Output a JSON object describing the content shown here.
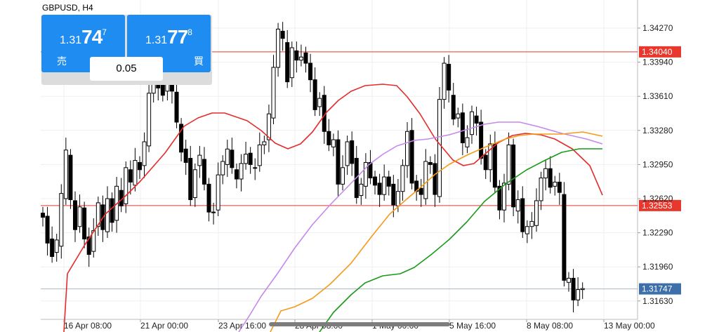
{
  "symbol": "GBPUSD, H4",
  "trade": {
    "sell": {
      "label": "売",
      "price_small": "1.31",
      "price_large": "74",
      "price_sup": "7"
    },
    "buy": {
      "label": "買",
      "price_small": "1.31",
      "price_large": "77",
      "price_sup": "8"
    },
    "lot": "0.05"
  },
  "chart_data": {
    "type": "candlestick",
    "ylim": [
      1.1515,
      1.3452
    ],
    "y_ticks": [
      "1.34270",
      "1.33940",
      "1.33610",
      "1.33280",
      "1.32950",
      "1.32620",
      "1.32290",
      "1.31960",
      "1.31630"
    ],
    "x_labels": [
      "16 Apr 08:00",
      "21 Apr 00:00",
      "23 Apr 16:00",
      "28 Apr 08:00",
      "1 May 00:00",
      "5 May 16:00",
      "8 May 08:00",
      "13 May 00:00"
    ],
    "hlines": [
      {
        "value": "1.34040",
        "color": "#e8382e"
      },
      {
        "value": "1.32553",
        "color": "#e8382e"
      }
    ],
    "current_price": {
      "value": "1.31747",
      "color": "#3d6fa8"
    },
    "candles": [
      [
        1.3248,
        1.3244
      ],
      [
        1.3245,
        1.3219
      ],
      [
        1.3223,
        1.3206
      ],
      [
        1.321,
        1.3222
      ],
      [
        1.3216,
        1.3267
      ],
      [
        1.3262,
        1.3309
      ],
      [
        1.3304,
        1.3261
      ],
      [
        1.326,
        1.3232
      ],
      [
        1.3235,
        1.3254
      ],
      [
        1.3253,
        1.3223
      ],
      [
        1.3225,
        1.3208
      ],
      [
        1.3211,
        1.3231
      ],
      [
        1.3235,
        1.3258
      ],
      [
        1.3256,
        1.3232
      ],
      [
        1.323,
        1.3262
      ],
      [
        1.3262,
        1.3239
      ],
      [
        1.3241,
        1.3274
      ],
      [
        1.327,
        1.3255
      ],
      [
        1.3257,
        1.3292
      ],
      [
        1.329,
        1.3278
      ],
      [
        1.3275,
        1.3299
      ],
      [
        1.3297,
        1.329
      ],
      [
        1.3294,
        1.3317
      ],
      [
        1.3313,
        1.3364
      ],
      [
        1.3364,
        1.3392
      ],
      [
        1.339,
        1.3369
      ],
      [
        1.3372,
        1.3362
      ],
      [
        1.3366,
        1.3385
      ],
      [
        1.3383,
        1.3366
      ],
      [
        1.3365,
        1.3336
      ],
      [
        1.3334,
        1.3307
      ],
      [
        1.331,
        1.3297
      ],
      [
        1.3301,
        1.3261
      ],
      [
        1.3263,
        1.329
      ],
      [
        1.3294,
        1.3304
      ],
      [
        1.33,
        1.3276
      ],
      [
        1.3276,
        1.3249
      ],
      [
        1.3249,
        1.3249
      ],
      [
        1.3251,
        1.3285
      ],
      [
        1.3285,
        1.3298
      ],
      [
        1.3295,
        1.331
      ],
      [
        1.3309,
        1.3292
      ],
      [
        1.329,
        1.3281
      ],
      [
        1.3281,
        1.3296
      ],
      [
        1.3296,
        1.3305
      ],
      [
        1.3306,
        1.3295
      ],
      [
        1.3292,
        1.3292
      ],
      [
        1.3294,
        1.3314
      ],
      [
        1.3314,
        1.3317
      ],
      [
        1.3319,
        1.3344
      ],
      [
        1.334,
        1.3389
      ],
      [
        1.3389,
        1.3426
      ],
      [
        1.3424,
        1.3417
      ],
      [
        1.3413,
        1.3375
      ],
      [
        1.3379,
        1.3408
      ],
      [
        1.3405,
        1.3396
      ],
      [
        1.3396,
        1.3399
      ],
      [
        1.3403,
        1.3393
      ],
      [
        1.3393,
        1.3377
      ],
      [
        1.3377,
        1.3348
      ],
      [
        1.3351,
        1.3359
      ],
      [
        1.3362,
        1.3327
      ],
      [
        1.3327,
        1.3314
      ],
      [
        1.3312,
        1.3319
      ],
      [
        1.3319,
        1.3276
      ],
      [
        1.3276,
        1.3292
      ],
      [
        1.3294,
        1.3317
      ],
      [
        1.3318,
        1.3296
      ],
      [
        1.3301,
        1.3263
      ],
      [
        1.3265,
        1.3276
      ],
      [
        1.3274,
        1.3297
      ],
      [
        1.3297,
        1.3282
      ],
      [
        1.3283,
        1.3275
      ],
      [
        1.3277,
        1.3266
      ],
      [
        1.3266,
        1.3283
      ],
      [
        1.3283,
        1.3274
      ],
      [
        1.3276,
        1.3256
      ],
      [
        1.3255,
        1.3269
      ],
      [
        1.3269,
        1.3294
      ],
      [
        1.3294,
        1.3327
      ],
      [
        1.3328,
        1.3277
      ],
      [
        1.3279,
        1.3269
      ],
      [
        1.3272,
        1.3266
      ],
      [
        1.3262,
        1.3298
      ],
      [
        1.3297,
        1.3295
      ],
      [
        1.3296,
        1.3266
      ],
      [
        1.3264,
        1.3358
      ],
      [
        1.3358,
        1.3393
      ],
      [
        1.3392,
        1.3367
      ],
      [
        1.3362,
        1.3339
      ],
      [
        1.334,
        1.3344
      ],
      [
        1.3345,
        1.3316
      ],
      [
        1.3312,
        1.3321
      ],
      [
        1.3324,
        1.3346
      ],
      [
        1.3342,
        1.3335
      ],
      [
        1.3336,
        1.3301
      ],
      [
        1.3304,
        1.329
      ],
      [
        1.329,
        1.3315
      ],
      [
        1.3315,
        1.3273
      ],
      [
        1.3274,
        1.3251
      ],
      [
        1.3251,
        1.3277
      ],
      [
        1.3276,
        1.3314
      ],
      [
        1.3314,
        1.3254
      ],
      [
        1.325,
        1.3261
      ],
      [
        1.3262,
        1.323
      ],
      [
        1.3228,
        1.3235
      ],
      [
        1.3235,
        1.324
      ],
      [
        1.3236,
        1.326
      ],
      [
        1.326,
        1.3282
      ],
      [
        1.3282,
        1.3291
      ],
      [
        1.3291,
        1.3273
      ],
      [
        1.3274,
        1.3278
      ],
      [
        1.3278,
        1.3268
      ],
      [
        1.3266,
        1.3183
      ],
      [
        1.3181,
        1.3185
      ],
      [
        1.3185,
        1.3164
      ],
      [
        1.3164,
        1.3174
      ],
      [
        1.3174,
        1.3175
      ]
    ],
    "series": [
      {
        "color": "#e52b2b",
        "points": [
          [
            91,
            473
          ],
          [
            96,
            390
          ],
          [
            120,
            350
          ],
          [
            150,
            305
          ],
          [
            180,
            278
          ],
          [
            200,
            258
          ],
          [
            235,
            218
          ],
          [
            255,
            190
          ],
          [
            262,
            180
          ],
          [
            282,
            168
          ],
          [
            302,
            161
          ],
          [
            320,
            161
          ],
          [
            352,
            172
          ],
          [
            372,
            186
          ],
          [
            392,
            204
          ],
          [
            410,
            212
          ],
          [
            428,
            205
          ],
          [
            445,
            188
          ],
          [
            465,
            160
          ],
          [
            482,
            143
          ],
          [
            500,
            130
          ],
          [
            520,
            122
          ],
          [
            545,
            120
          ],
          [
            565,
            122
          ],
          [
            580,
            138
          ],
          [
            598,
            162
          ],
          [
            620,
            198
          ],
          [
            645,
            228
          ],
          [
            660,
            236
          ],
          [
            675,
            233
          ],
          [
            690,
            220
          ],
          [
            710,
            203
          ],
          [
            730,
            193
          ],
          [
            748,
            190
          ],
          [
            770,
            192
          ],
          [
            790,
            198
          ],
          [
            815,
            212
          ],
          [
            840,
            236
          ],
          [
            858,
            278
          ]
        ]
      },
      {
        "color": "#c588ec",
        "points": [
          [
            340,
            473
          ],
          [
            355,
            450
          ],
          [
            372,
            422
          ],
          [
            395,
            390
          ],
          [
            420,
            353
          ],
          [
            445,
            320
          ],
          [
            470,
            292
          ],
          [
            500,
            261
          ],
          [
            525,
            235
          ],
          [
            545,
            220
          ],
          [
            565,
            208
          ],
          [
            590,
            200
          ],
          [
            610,
            198
          ],
          [
            640,
            192
          ],
          [
            660,
            186
          ],
          [
            690,
            177
          ],
          [
            710,
            174
          ],
          [
            740,
            174
          ],
          [
            765,
            180
          ],
          [
            800,
            190
          ],
          [
            835,
            198
          ],
          [
            858,
            205
          ]
        ]
      },
      {
        "color": "#f59a1a",
        "points": [
          [
            385,
            473
          ],
          [
            400,
            443
          ],
          [
            420,
            437
          ],
          [
            445,
            425
          ],
          [
            470,
            405
          ],
          [
            500,
            375
          ],
          [
            530,
            336
          ],
          [
            555,
            305
          ],
          [
            580,
            283
          ],
          [
            600,
            266
          ],
          [
            620,
            248
          ],
          [
            640,
            234
          ],
          [
            665,
            221
          ],
          [
            690,
            210
          ],
          [
            720,
            198
          ],
          [
            740,
            193
          ],
          [
            760,
            191
          ],
          [
            800,
            191
          ],
          [
            830,
            188
          ],
          [
            858,
            194
          ]
        ]
      },
      {
        "color": "#1a9a1a",
        "points": [
          [
            455,
            473
          ],
          [
            475,
            445
          ],
          [
            500,
            420
          ],
          [
            520,
            403
          ],
          [
            545,
            393
          ],
          [
            570,
            390
          ],
          [
            590,
            381
          ],
          [
            615,
            362
          ],
          [
            640,
            341
          ],
          [
            665,
            316
          ],
          [
            690,
            287
          ],
          [
            720,
            262
          ],
          [
            750,
            242
          ],
          [
            775,
            229
          ],
          [
            800,
            217
          ],
          [
            825,
            212
          ],
          [
            858,
            212
          ]
        ]
      }
    ]
  }
}
